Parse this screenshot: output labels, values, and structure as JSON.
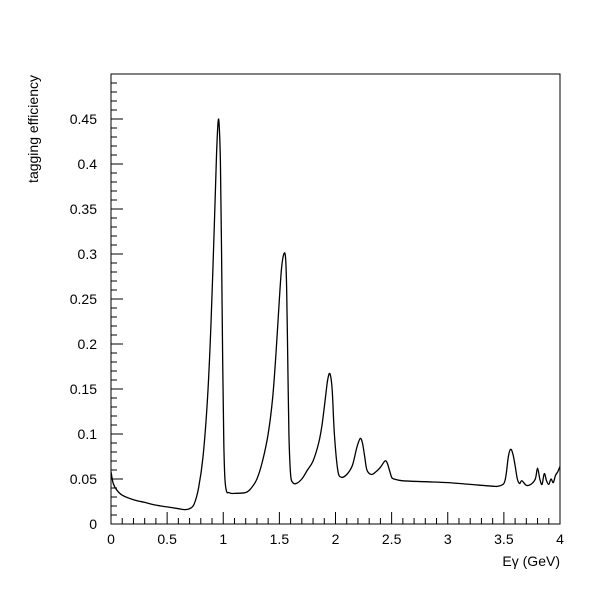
{
  "chart_data": {
    "type": "line",
    "title": "",
    "xlabel": "Eγ (GeV)",
    "ylabel": "tagging efficiency",
    "xlim": [
      0,
      4
    ],
    "ylim": [
      0,
      0.5
    ],
    "grid": false,
    "x_ticks": [
      "0",
      "0.5",
      "1",
      "1.5",
      "2",
      "2.5",
      "3",
      "3.5",
      "4"
    ],
    "y_ticks": [
      "0",
      "0.05",
      "0.1",
      "0.15",
      "0.2",
      "0.25",
      "0.3",
      "0.35",
      "0.4",
      "0.45"
    ],
    "x_tick_values": [
      0,
      0.5,
      1,
      1.5,
      2,
      2.5,
      3,
      3.5,
      4
    ],
    "y_tick_values": [
      0,
      0.05,
      0.1,
      0.15,
      0.2,
      0.25,
      0.3,
      0.35,
      0.4,
      0.45
    ],
    "series": [
      {
        "x": [
          0.0,
          0.02,
          0.05,
          0.1,
          0.2,
          0.3,
          0.4,
          0.5,
          0.6,
          0.66,
          0.7,
          0.74,
          0.78,
          0.82,
          0.86,
          0.89,
          0.92,
          0.94,
          0.955,
          0.965,
          0.975,
          0.985,
          0.995,
          1.005,
          1.015,
          1.03,
          1.05,
          1.07,
          1.1,
          1.2,
          1.25,
          1.3,
          1.35,
          1.4,
          1.44,
          1.47,
          1.5,
          1.52,
          1.54,
          1.555,
          1.565,
          1.575,
          1.585,
          1.6,
          1.62,
          1.65,
          1.7,
          1.75,
          1.8,
          1.85,
          1.88,
          1.91,
          1.93,
          1.95,
          1.97,
          1.99,
          2.02,
          2.05,
          2.1,
          2.15,
          2.19,
          2.22,
          2.24,
          2.26,
          2.28,
          2.32,
          2.36,
          2.4,
          2.44,
          2.46,
          2.48,
          2.5,
          2.52,
          2.6,
          2.8,
          3.0,
          3.2,
          3.4,
          3.45,
          3.5,
          3.52,
          3.54,
          3.56,
          3.58,
          3.6,
          3.62,
          3.64,
          3.66,
          3.7,
          3.74,
          3.78,
          3.8,
          3.82,
          3.84,
          3.86,
          3.88,
          3.9,
          3.92,
          3.94,
          3.96,
          3.98,
          4.0
        ],
        "y": [
          0.058,
          0.045,
          0.038,
          0.032,
          0.027,
          0.024,
          0.021,
          0.019,
          0.017,
          0.016,
          0.017,
          0.022,
          0.04,
          0.075,
          0.14,
          0.22,
          0.33,
          0.41,
          0.448,
          0.44,
          0.4,
          0.3,
          0.18,
          0.09,
          0.05,
          0.036,
          0.035,
          0.034,
          0.034,
          0.035,
          0.04,
          0.05,
          0.07,
          0.1,
          0.14,
          0.19,
          0.25,
          0.285,
          0.3,
          0.296,
          0.26,
          0.18,
          0.1,
          0.055,
          0.046,
          0.045,
          0.05,
          0.06,
          0.07,
          0.09,
          0.11,
          0.14,
          0.16,
          0.167,
          0.15,
          0.1,
          0.06,
          0.052,
          0.055,
          0.065,
          0.085,
          0.095,
          0.09,
          0.075,
          0.06,
          0.055,
          0.058,
          0.063,
          0.07,
          0.068,
          0.06,
          0.052,
          0.05,
          0.048,
          0.047,
          0.046,
          0.044,
          0.042,
          0.042,
          0.045,
          0.055,
          0.075,
          0.083,
          0.078,
          0.065,
          0.05,
          0.045,
          0.048,
          0.043,
          0.044,
          0.05,
          0.062,
          0.05,
          0.044,
          0.056,
          0.048,
          0.044,
          0.05,
          0.046,
          0.054,
          0.058,
          0.064
        ]
      }
    ]
  }
}
